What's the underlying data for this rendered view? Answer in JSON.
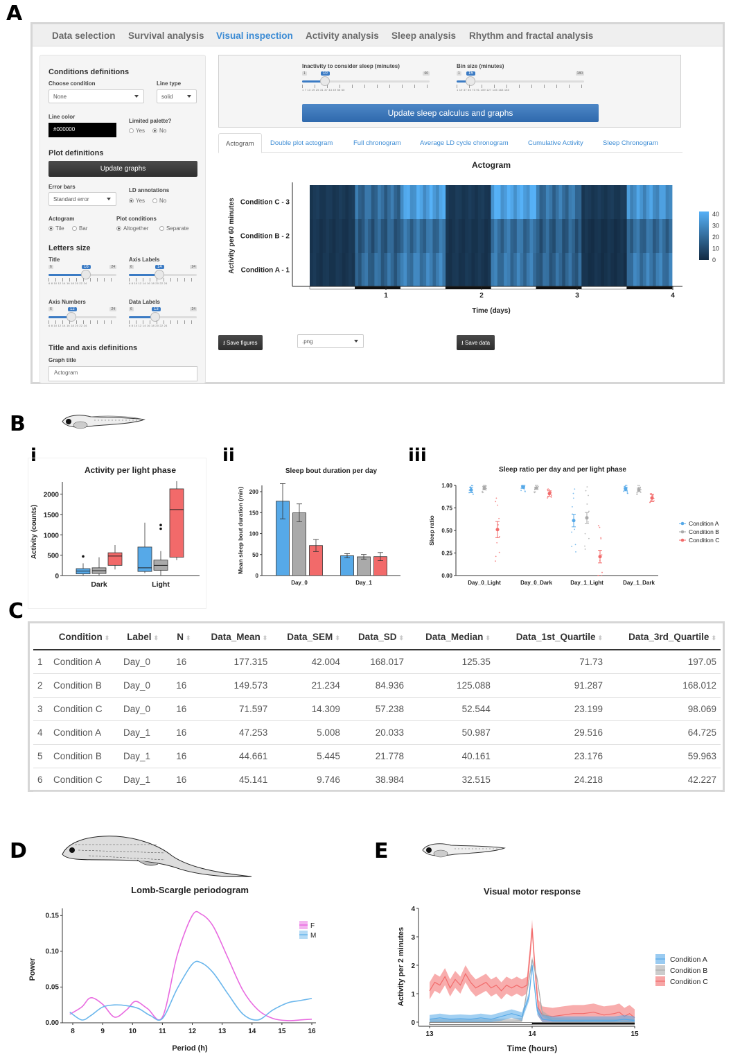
{
  "panel_labels": {
    "a": "A",
    "b": "B",
    "c": "C",
    "d": "D",
    "e": "E",
    "bi": "i",
    "bii": "ii",
    "biii": "iii"
  },
  "nav": {
    "tabs": [
      "Data selection",
      "Survival analysis",
      "Visual inspection",
      "Activity analysis",
      "Sleep analysis",
      "Rhythm and fractal analysis"
    ],
    "active": "Visual inspection"
  },
  "sidebar": {
    "conditions_header": "Conditions definitions",
    "choose_condition_label": "Choose condition",
    "choose_condition_value": "None",
    "line_type_label": "Line type",
    "line_type_value": "solid",
    "line_color_label": "Line color",
    "line_color_value": "#000000",
    "limited_palette_label": "Limited palette?",
    "yes": "Yes",
    "no": "No",
    "plot_header": "Plot definitions",
    "update_graphs": "Update graphs",
    "error_bars_label": "Error bars",
    "error_bars_value": "Standard error",
    "ld_annotations_label": "LD annotations",
    "actogram_label": "Actogram",
    "tile": "Tile",
    "bar": "Bar",
    "plot_conditions_label": "Plot conditions",
    "altogether": "Altogether",
    "separate": "Separate",
    "letters_header": "Letters size",
    "title_label": "Title",
    "axis_labels_label": "Axis Labels",
    "axis_numbers_label": "Axis Numbers",
    "data_labels_label": "Data Labels",
    "title_axis_header": "Title and axis definitions",
    "graph_title_label": "Graph title",
    "graph_title_value": "Actogram",
    "slider_min": "6",
    "slider_max": "24",
    "slider_ticks": "6  8  10  12  14  16  18  20  22  24",
    "title_size": "16",
    "axis_labels_size": "14",
    "axis_numbers_size": "12",
    "data_labels_size": "13"
  },
  "main": {
    "inactivity_label": "Inactivity to consider sleep (minutes)",
    "inactivity_min": "1",
    "inactivity_max": "60",
    "inactivity_value": "10",
    "inactivity_ticks": "1   7   13   19   25   31   37   43   49   55   60",
    "bin_label": "Bin size (minutes)",
    "bin_min": "1",
    "bin_max": "180",
    "bin_value": "15",
    "bin_ticks": "1   19   37   55   73   91   109  127  145  163  180",
    "update_button": "Update sleep calculus and graphs",
    "tabs": [
      "Actogram",
      "Double plot actogram",
      "Full chronogram",
      "Average LD cycle chronogram",
      "Cumulative Activity",
      "Sleep Chronogram"
    ],
    "save_figures": "Save figures",
    "format_value": ".png",
    "save_data": "Save data"
  },
  "colors": {
    "condA": "#56a9e8",
    "condB": "#aaaaaa",
    "condC": "#f26a6a",
    "F": "#e86ae0",
    "M": "#6ab6ec",
    "link": "#3b8bd4"
  },
  "chart_data": [
    {
      "type": "heatmap",
      "title": "Actogram",
      "xlabel": "Time (days)",
      "ylabel": "Activity per 60 minutes",
      "x_ticks": [
        "1",
        "2",
        "3",
        "4"
      ],
      "y_categories": [
        "Condition A - 1",
        "Condition B - 2",
        "Condition C - 3"
      ],
      "colorbar_ticks": [
        0,
        10,
        20,
        30,
        40
      ],
      "light_dark": [
        "light",
        "dark",
        "light",
        "dark",
        "light",
        "dark",
        "light",
        "dark"
      ],
      "values": [
        [
          3,
          18,
          24,
          3,
          22,
          17,
          2,
          23
        ],
        [
          3,
          15,
          20,
          3,
          20,
          15,
          2,
          19
        ],
        [
          4,
          19,
          34,
          4,
          36,
          21,
          4,
          31
        ]
      ]
    },
    {
      "type": "box",
      "title": "Activity per light phase",
      "xlabel": "",
      "ylabel": "Activity (counts)",
      "categories": [
        "Dark",
        "Light"
      ],
      "yticks": [
        0,
        500,
        1000,
        1500,
        2000
      ],
      "ylim": [
        0,
        2300
      ],
      "series": [
        {
          "name": "Condition A",
          "boxes": [
            [
              0,
              40,
              110,
              170,
              300
            ],
            [
              60,
              100,
              190,
              700,
              1300
            ]
          ]
        },
        {
          "name": "Condition B",
          "boxes": [
            [
              10,
              50,
              120,
              190,
              450
            ],
            [
              0,
              130,
              250,
              380,
              600
            ]
          ]
        },
        {
          "name": "Condition C",
          "boxes": [
            [
              150,
              250,
              480,
              560,
              750
            ],
            [
              380,
              450,
              1620,
              2130,
              2320
            ]
          ]
        }
      ],
      "outliers": [
        {
          "category": "Light",
          "series": "Condition B",
          "values": [
            1150,
            1240
          ]
        },
        {
          "category": "Dark",
          "series": "Condition A",
          "values": [
            470
          ]
        }
      ]
    },
    {
      "type": "bar",
      "title": "Sleep bout duration per day",
      "ylabel": "Mean sleep bout duration (min)",
      "categories": [
        "Day_0",
        "Day_1"
      ],
      "yticks": [
        0,
        50,
        100,
        150,
        200
      ],
      "ylim": [
        0,
        215
      ],
      "series": [
        {
          "name": "Condition A",
          "values": [
            177.315,
            47.253
          ],
          "err": [
            42.004,
            5.008
          ]
        },
        {
          "name": "Condition B",
          "values": [
            149.573,
            44.661
          ],
          "err": [
            21.234,
            5.445
          ]
        },
        {
          "name": "Condition C",
          "values": [
            71.597,
            45.141
          ],
          "err": [
            14.309,
            9.746
          ]
        }
      ]
    },
    {
      "type": "scatter",
      "title": "Sleep ratio per day and per light phase",
      "ylabel": "Sleep ratio",
      "categories": [
        "Day_0_Light",
        "Day_0_Dark",
        "Day_1_Light",
        "Day_1_Dark"
      ],
      "yticks": [
        "0.00",
        "0.25",
        "0.50",
        "0.75",
        "1.00"
      ],
      "ylim": [
        0,
        1.0
      ],
      "legend": "right",
      "series": [
        {
          "name": "Condition A",
          "means": [
            0.95,
            0.98,
            0.61,
            0.96
          ],
          "err": [
            0.03,
            0.01,
            0.07,
            0.02
          ]
        },
        {
          "name": "Condition B",
          "means": [
            0.97,
            0.97,
            0.64,
            0.95
          ],
          "err": [
            0.02,
            0.01,
            0.06,
            0.02
          ]
        },
        {
          "name": "Condition C",
          "means": [
            0.51,
            0.91,
            0.21,
            0.86
          ],
          "err": [
            0.09,
            0.03,
            0.07,
            0.04
          ]
        }
      ]
    },
    {
      "type": "table",
      "columns": [
        "Condition",
        "Label",
        "N",
        "Data_Mean",
        "Data_SEM",
        "Data_SD",
        "Data_Median",
        "Data_1st_Quartile",
        "Data_3rd_Quartile"
      ],
      "rows": [
        [
          "1",
          "Condition A",
          "Day_0",
          "16",
          "177.315",
          "42.004",
          "168.017",
          "125.35",
          "71.73",
          "197.05"
        ],
        [
          "2",
          "Condition B",
          "Day_0",
          "16",
          "149.573",
          "21.234",
          "84.936",
          "125.088",
          "91.287",
          "168.012"
        ],
        [
          "3",
          "Condition C",
          "Day_0",
          "16",
          "71.597",
          "14.309",
          "57.238",
          "52.544",
          "23.199",
          "98.069"
        ],
        [
          "4",
          "Condition A",
          "Day_1",
          "16",
          "47.253",
          "5.008",
          "20.033",
          "50.987",
          "29.516",
          "64.725"
        ],
        [
          "5",
          "Condition B",
          "Day_1",
          "16",
          "44.661",
          "5.445",
          "21.778",
          "40.161",
          "23.176",
          "59.963"
        ],
        [
          "6",
          "Condition C",
          "Day_1",
          "16",
          "45.141",
          "9.746",
          "38.984",
          "32.515",
          "24.218",
          "42.227"
        ]
      ]
    },
    {
      "type": "line",
      "title": "Lomb-Scargle periodogram",
      "xlabel": "Period (h)",
      "ylabel": "Power",
      "xlim": [
        8,
        16
      ],
      "ylim": [
        0,
        0.16
      ],
      "xticks": [
        8,
        9,
        10,
        11,
        12,
        13,
        14,
        15,
        16
      ],
      "yticks": [
        "0.00",
        "0.05",
        "0.10",
        "0.15"
      ],
      "series": [
        {
          "name": "F",
          "x": [
            7.9,
            8.3,
            8.6,
            9.0,
            9.4,
            9.8,
            10.1,
            10.5,
            11.0,
            11.5,
            12.0,
            12.3,
            12.7,
            13.2,
            13.7,
            14.2,
            14.7,
            15.2,
            15.6,
            16.0
          ],
          "y": [
            0.012,
            0.022,
            0.035,
            0.026,
            0.008,
            0.018,
            0.03,
            0.02,
            0.008,
            0.095,
            0.15,
            0.152,
            0.135,
            0.09,
            0.045,
            0.018,
            0.006,
            0.003,
            0.004,
            0.005
          ]
        },
        {
          "name": "M",
          "x": [
            7.9,
            8.3,
            8.6,
            9.0,
            9.4,
            9.8,
            10.2,
            10.6,
            11.0,
            11.5,
            12.0,
            12.3,
            12.7,
            13.2,
            13.7,
            14.2,
            14.7,
            15.2,
            15.6,
            16.0
          ],
          "y": [
            0.015,
            0.004,
            0.01,
            0.022,
            0.025,
            0.024,
            0.02,
            0.01,
            0.006,
            0.048,
            0.082,
            0.084,
            0.07,
            0.04,
            0.012,
            0.004,
            0.018,
            0.028,
            0.031,
            0.034
          ]
        }
      ]
    },
    {
      "type": "area",
      "title": "Visual motor response",
      "xlabel": "Time (hours)",
      "ylabel": "Activity per 2 minutes",
      "xlim": [
        13,
        15
      ],
      "ylim": [
        0,
        4
      ],
      "xticks": [
        13,
        14,
        15
      ],
      "yticks": [
        0,
        1,
        2,
        3,
        4
      ],
      "series": [
        {
          "name": "Condition A",
          "x": [
            13.0,
            13.1,
            13.2,
            13.3,
            13.4,
            13.5,
            13.6,
            13.7,
            13.8,
            13.9,
            13.97,
            14.0,
            14.05,
            14.1,
            14.2,
            14.4,
            14.6,
            14.8,
            14.9,
            15.0
          ],
          "y": [
            0.1,
            0.15,
            0.1,
            0.12,
            0.1,
            0.15,
            0.1,
            0.2,
            0.3,
            0.2,
            0.9,
            2.0,
            0.4,
            0.1,
            0.05,
            0.05,
            0.05,
            0.05,
            0.1,
            0.05
          ],
          "band": 0.15
        },
        {
          "name": "Condition B",
          "x": [
            13.0,
            13.2,
            13.4,
            13.6,
            13.8,
            13.9,
            13.97,
            14.0,
            14.05,
            14.1,
            14.2,
            14.4,
            14.6,
            14.8,
            15.0
          ],
          "y": [
            0.02,
            0.02,
            0.02,
            0.02,
            0.03,
            0.05,
            1.5,
            2.2,
            1.5,
            0.3,
            0.05,
            0.02,
            0.02,
            0.02,
            0.02
          ],
          "band": 0.1
        },
        {
          "name": "Condition C",
          "x": [
            13.0,
            13.05,
            13.1,
            13.15,
            13.2,
            13.25,
            13.3,
            13.35,
            13.4,
            13.45,
            13.5,
            13.55,
            13.6,
            13.65,
            13.7,
            13.75,
            13.8,
            13.85,
            13.9,
            13.95,
            13.98,
            14.0,
            14.03,
            14.06,
            14.1,
            14.2,
            14.3,
            14.4,
            14.5,
            14.6,
            14.7,
            14.8,
            14.85,
            14.9,
            14.95,
            15.0
          ],
          "y": [
            1.1,
            1.4,
            1.3,
            1.6,
            1.2,
            1.5,
            1.3,
            1.7,
            1.4,
            1.2,
            1.3,
            1.4,
            1.2,
            1.3,
            1.1,
            1.3,
            1.2,
            1.3,
            1.2,
            1.3,
            2.4,
            3.3,
            1.8,
            0.5,
            0.25,
            0.2,
            0.25,
            0.3,
            0.3,
            0.35,
            0.25,
            0.3,
            0.35,
            0.2,
            0.3,
            0.15
          ],
          "band": 0.3
        }
      ]
    }
  ]
}
